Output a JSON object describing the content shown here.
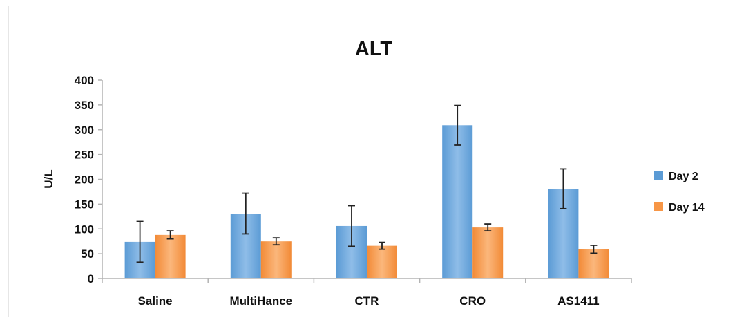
{
  "chart_data": {
    "type": "bar",
    "title": "ALT",
    "xlabel": "",
    "ylabel": "U/L",
    "ylim": [
      0,
      400
    ],
    "yticks": [
      0,
      50,
      100,
      150,
      200,
      250,
      300,
      350,
      400
    ],
    "categories": [
      "Saline",
      "MultiHance",
      "CTR",
      "CRO",
      "AS1411"
    ],
    "series": [
      {
        "name": "Day 2",
        "color": "#5b9bd5",
        "values": [
          74,
          131,
          106,
          309,
          181
        ],
        "error": [
          41,
          41,
          41,
          40,
          40
        ]
      },
      {
        "name": "Day 14",
        "color": "#f79646",
        "values": [
          88,
          75,
          66,
          103,
          59
        ],
        "error": [
          8,
          7,
          7,
          7,
          8
        ]
      }
    ],
    "legend_position": "right",
    "grid": false
  }
}
